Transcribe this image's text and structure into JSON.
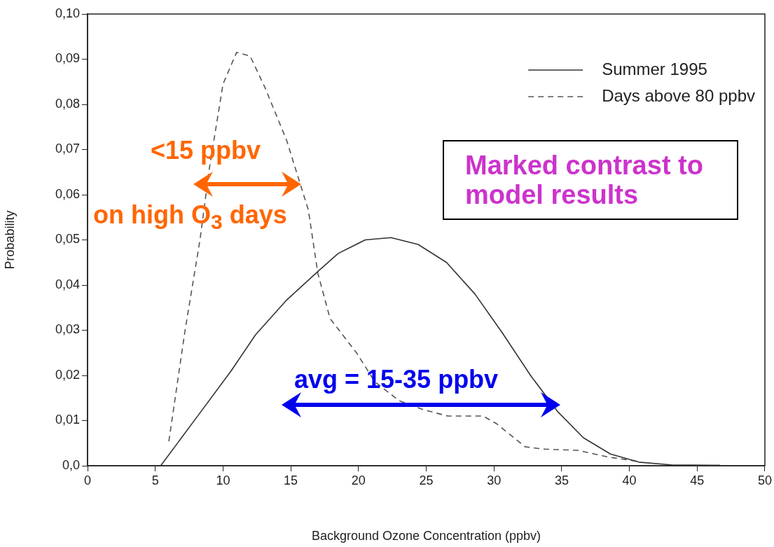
{
  "chart_data": {
    "type": "line",
    "xlabel": "Background Ozone Concentration (ppbv)",
    "ylabel": "Probability",
    "xlim": [
      0,
      50
    ],
    "xticks": [
      0,
      5,
      10,
      15,
      20,
      25,
      30,
      35,
      40,
      45,
      50
    ],
    "ylim": [
      0,
      0.1
    ],
    "yticks": [
      {
        "value": 0,
        "label": "0,0"
      },
      {
        "value": 0.01,
        "label": "0,01"
      },
      {
        "value": 0.02,
        "label": "0,02"
      },
      {
        "value": 0.03,
        "label": "0,03"
      },
      {
        "value": 0.04,
        "label": "0,04"
      },
      {
        "value": 0.05,
        "label": "0,05"
      },
      {
        "value": 0.06,
        "label": "0,06"
      },
      {
        "value": 0.07,
        "label": "0,07"
      },
      {
        "value": 0.08,
        "label": "0,08"
      },
      {
        "value": 0.09,
        "label": "0,09"
      },
      {
        "value": 0.1,
        "label": "0,10"
      }
    ],
    "grid": false,
    "legend": "top right",
    "marker": "none",
    "series": [
      {
        "name": "Summer 1995",
        "color": "#333333",
        "line_style": "solid",
        "x": [
          5.4,
          8.2,
          10.6,
          12.4,
          14.7,
          17.0,
          18.5,
          20.5,
          22.4,
          24.4,
          26.5,
          28.6,
          30.6,
          32.7,
          34.7,
          36.6,
          38.6,
          40.7,
          43.1,
          46.7
        ],
        "values": [
          0,
          0.0113,
          0.021,
          0.029,
          0.0367,
          0.043,
          0.047,
          0.05,
          0.0505,
          0.049,
          0.045,
          0.038,
          0.0295,
          0.02,
          0.012,
          0.0062,
          0.0026,
          0.0008,
          0.0002,
          0.0001
        ]
      },
      {
        "name": "Days above 80 ppbv",
        "color": "#555555",
        "line_style": "dashed",
        "x": [
          6.0,
          7.2,
          8.3,
          9.0,
          10.0,
          11.0,
          12.0,
          13.1,
          14.7,
          16.3,
          17.0,
          17.9,
          19.9,
          21.2,
          23.0,
          24.8,
          26.6,
          29.2,
          30.2,
          32.3,
          33.6,
          36.2,
          38.5,
          40.8
        ],
        "values": [
          0.0054,
          0.03,
          0.05,
          0.066,
          0.0845,
          0.0915,
          0.0907,
          0.0837,
          0.072,
          0.0566,
          0.0426,
          0.0326,
          0.0248,
          0.0186,
          0.0144,
          0.0124,
          0.011,
          0.011,
          0.0093,
          0.0042,
          0.0037,
          0.0034,
          0.0019,
          0.0009
        ]
      }
    ],
    "annotations": [
      "<15 ppbv",
      "on high O$_{3}$ days",
      "avg = 15-35 ppbv",
      "Marked contrast to model results"
    ]
  }
}
